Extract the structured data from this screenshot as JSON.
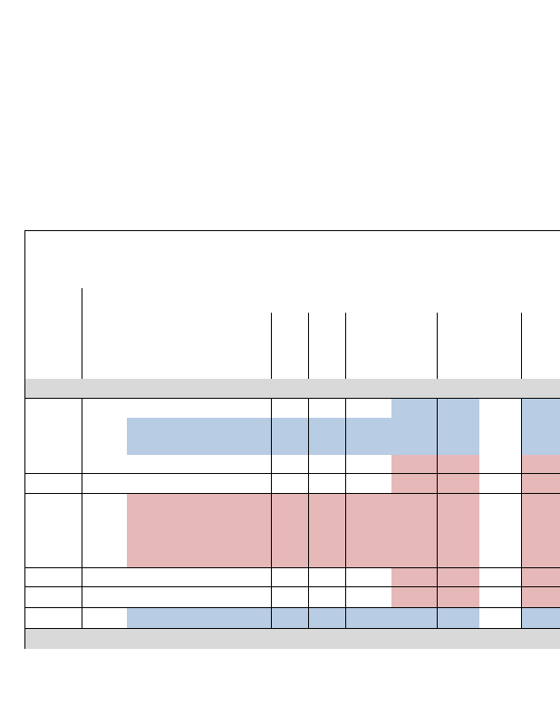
{
  "document": {
    "page_title": "",
    "table_title": "",
    "header_columns": [],
    "rows": [],
    "footer": ""
  },
  "colors": {
    "blue_fill": "#b8cce4",
    "red_fill": "#e6b8b8",
    "gray_band": "#d9d9d9",
    "border": "#000000"
  }
}
